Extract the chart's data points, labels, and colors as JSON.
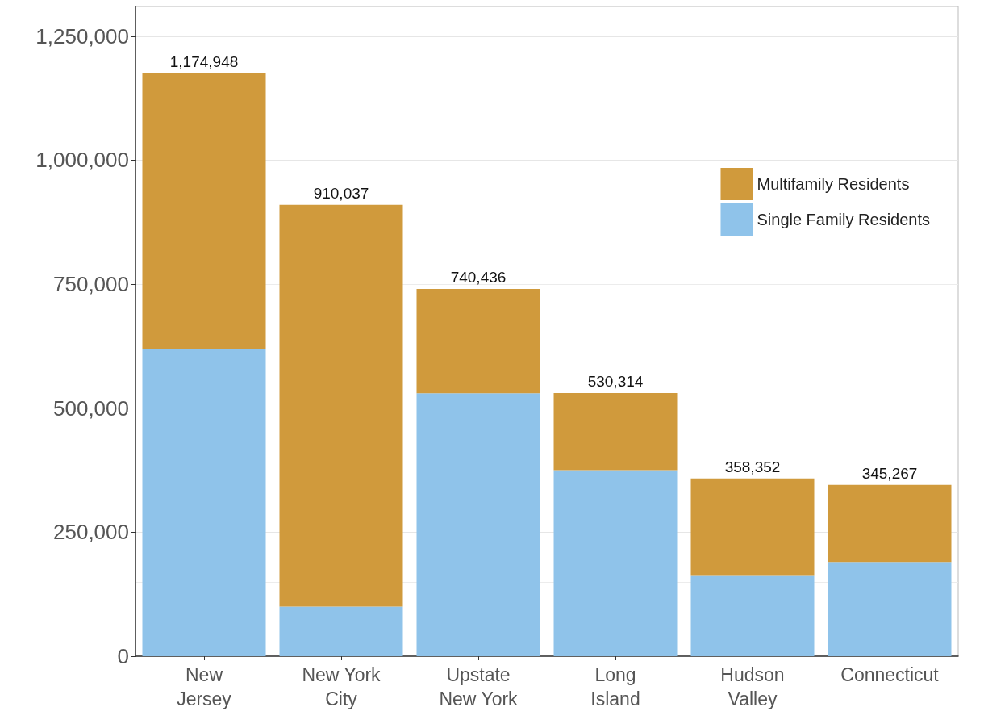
{
  "chart_data": {
    "type": "bar",
    "stacked": true,
    "categories": [
      "New Jersey",
      "New York City",
      "Upstate New York",
      "Long Island",
      "Hudson Valley",
      "Connecticut"
    ],
    "series": [
      {
        "name": "Single Family Residents",
        "color": "#8fc3ea",
        "values": [
          620000,
          100000,
          530000,
          375000,
          162000,
          190000
        ]
      },
      {
        "name": "Multifamily Residents",
        "color": "#d09a3c",
        "values": [
          554948,
          810037,
          210436,
          155314,
          196352,
          155267
        ]
      }
    ],
    "totals": [
      "1,174,948",
      "910,037",
      "740,436",
      "530,314",
      "358,352",
      "345,267"
    ],
    "ylim": [
      0,
      1310000
    ],
    "yticks": [
      0,
      {
        "value": 250000,
        "label": "250,000"
      },
      {
        "value": 500000,
        "label": "500,000"
      },
      {
        "value": 750000,
        "label": "750,000"
      },
      {
        "value": 1000000,
        "label": "1,000,000"
      },
      {
        "value": 1250000,
        "label": "1,250,000"
      }
    ],
    "grid": "y",
    "legend": "top right"
  }
}
